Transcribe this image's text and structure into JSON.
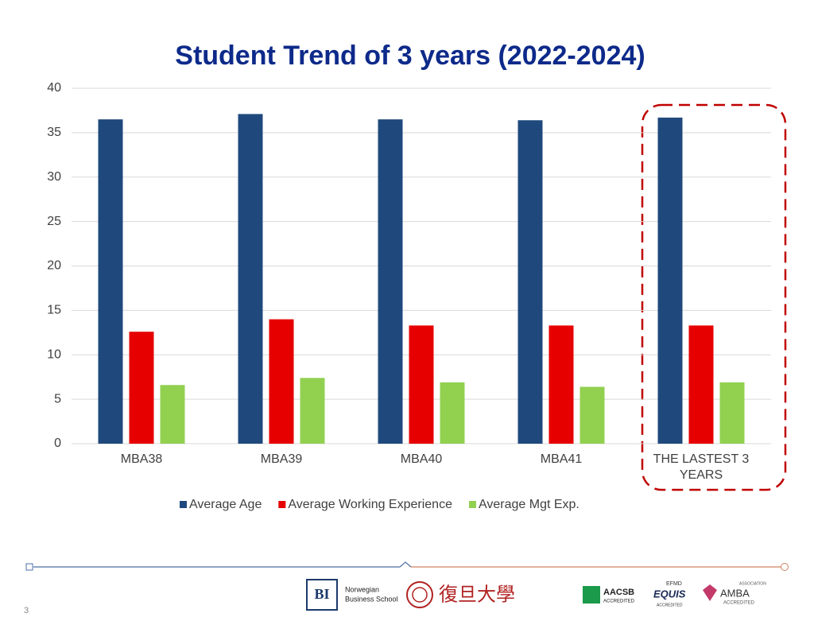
{
  "chart_data": {
    "type": "bar",
    "title": "Student Trend of 3 years (2022-2024)",
    "categories": [
      "MBA38",
      "MBA39",
      "MBA40",
      "MBA41",
      "THE LASTEST 3 YEARS"
    ],
    "series": [
      {
        "name": "Average Age",
        "color": "#1f497d",
        "values": [
          36.5,
          37.1,
          36.5,
          36.4,
          36.7
        ]
      },
      {
        "name": "Average Working Experience",
        "color": "#e60000",
        "values": [
          12.6,
          14.0,
          13.3,
          13.3,
          13.3
        ]
      },
      {
        "name": "Average Mgt Exp.",
        "color": "#92d050",
        "values": [
          6.6,
          7.4,
          6.9,
          6.4,
          6.9
        ]
      }
    ],
    "ylim": [
      0,
      40
    ],
    "yticks": [
      0,
      5,
      10,
      15,
      20,
      25,
      30,
      35,
      40
    ],
    "grid": true,
    "legend": "bottom"
  },
  "footer": {
    "page_number": "3",
    "bi": "BI",
    "bi_name_1": "Norwegian",
    "bi_name_2": "Business School",
    "fudan": "復旦大學",
    "aacsb": "AACSB",
    "aacsb_sub": "ACCREDITED",
    "efmd": "EFMD",
    "equis": "EQUIS",
    "equis_sub": "ACCREDITED",
    "amba_top": "ASSOCIATION",
    "amba": "AMBA",
    "amba_sub": "ACCREDITED"
  }
}
